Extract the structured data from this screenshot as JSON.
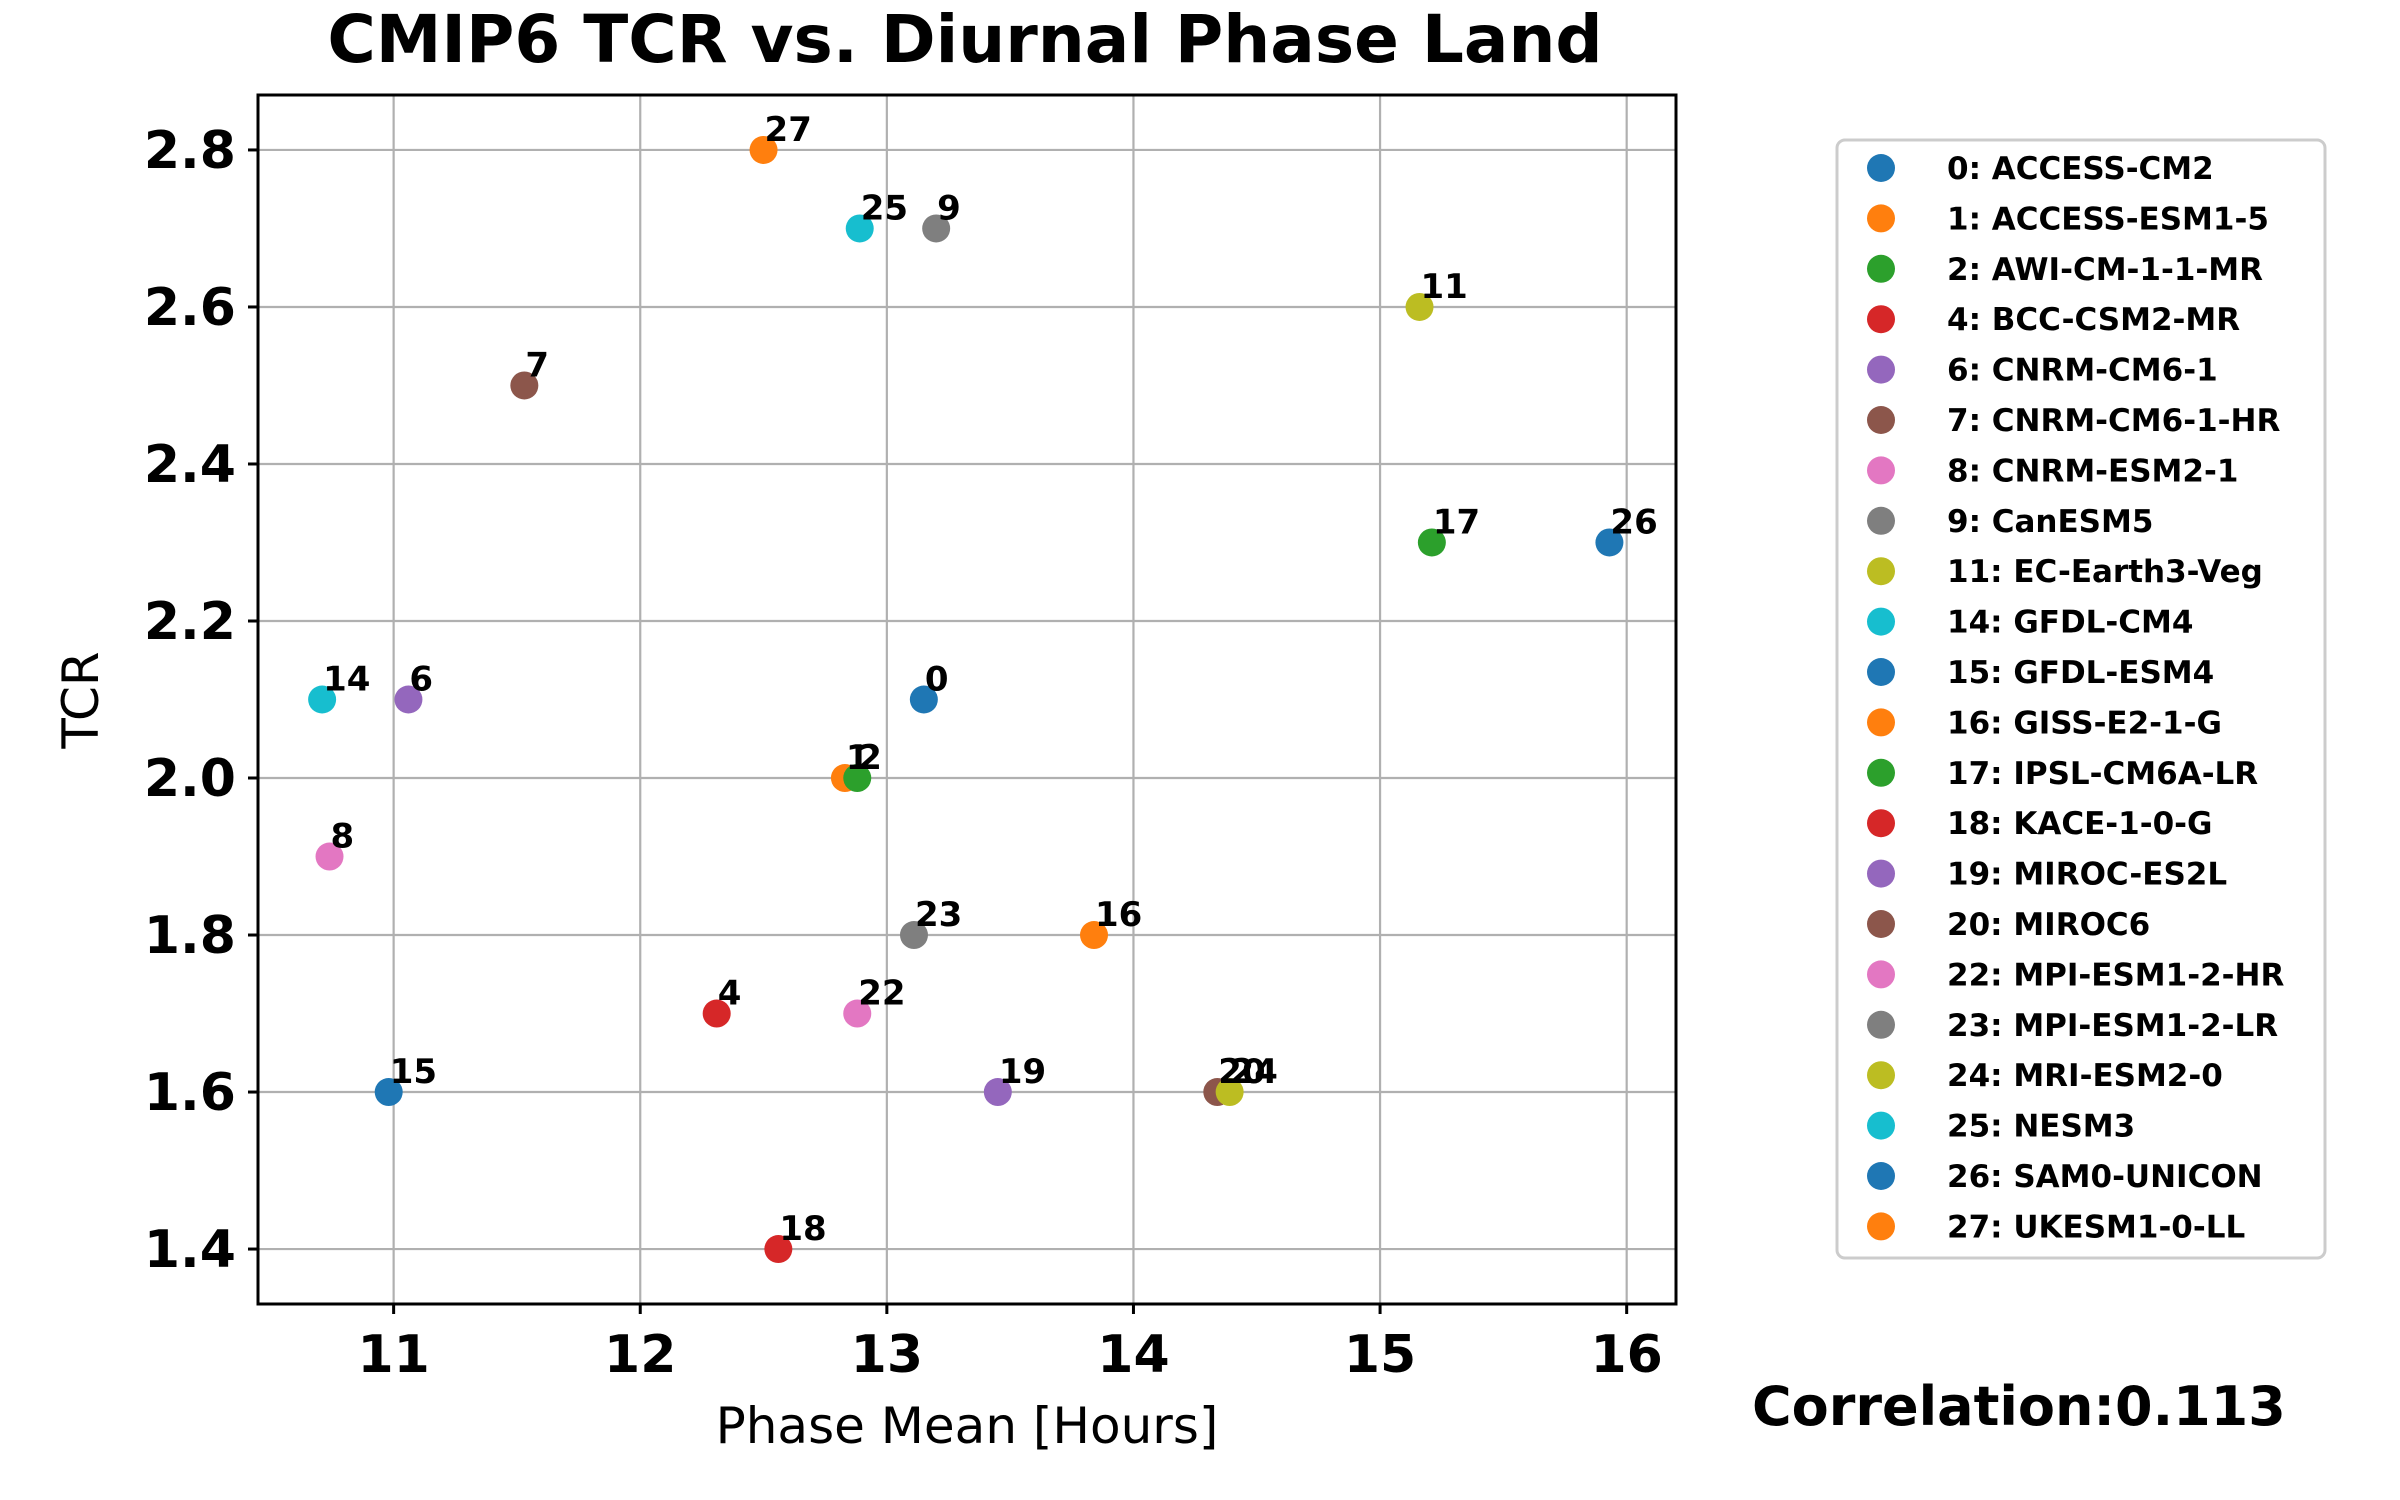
{
  "chart_data": {
    "type": "scatter",
    "title": "CMIP6 TCR vs. Diurnal Phase Land",
    "xlabel": "Phase Mean [Hours]",
    "ylabel": "TCR",
    "xlim": [
      10.45,
      16.2
    ],
    "ylim": [
      1.33,
      2.87
    ],
    "xticks": [
      11,
      12,
      13,
      14,
      15,
      16
    ],
    "yticks": [
      1.4,
      1.6,
      1.8,
      2.0,
      2.2,
      2.4,
      2.6,
      2.8
    ],
    "grid": true,
    "legend_position": "right",
    "annotation": "Correlation:0.113",
    "points": [
      {
        "id": "0",
        "model": "ACCESS-CM2",
        "legend": "0: ACCESS-CM2",
        "x": 13.15,
        "y": 2.1,
        "color": "#1f77b4"
      },
      {
        "id": "1",
        "model": "ACCESS-ESM1-5",
        "legend": "1: ACCESS-ESM1-5",
        "x": 12.83,
        "y": 2.0,
        "color": "#ff7f0e"
      },
      {
        "id": "2",
        "model": "AWI-CM-1-1-MR",
        "legend": "2: AWI-CM-1-1-MR",
        "x": 12.88,
        "y": 2.0,
        "color": "#2ca02c"
      },
      {
        "id": "4",
        "model": "BCC-CSM2-MR",
        "legend": "4: BCC-CSM2-MR",
        "x": 12.31,
        "y": 1.7,
        "color": "#d62728"
      },
      {
        "id": "6",
        "model": "CNRM-CM6-1",
        "legend": "6: CNRM-CM6-1",
        "x": 11.06,
        "y": 2.1,
        "color": "#9467bd"
      },
      {
        "id": "7",
        "model": "CNRM-CM6-1-HR",
        "legend": "7: CNRM-CM6-1-HR",
        "x": 11.53,
        "y": 2.5,
        "color": "#8c564b"
      },
      {
        "id": "8",
        "model": "CNRM-ESM2-1",
        "legend": "8: CNRM-ESM2-1",
        "x": 10.74,
        "y": 1.9,
        "color": "#e377c2"
      },
      {
        "id": "9",
        "model": "CanESM5",
        "legend": "9: CanESM5",
        "x": 13.2,
        "y": 2.7,
        "color": "#7f7f7f"
      },
      {
        "id": "11",
        "model": "EC-Earth3-Veg",
        "legend": "11: EC-Earth3-Veg",
        "x": 15.16,
        "y": 2.6,
        "color": "#bcbd22"
      },
      {
        "id": "14",
        "model": "GFDL-CM4",
        "legend": "14: GFDL-CM4",
        "x": 10.71,
        "y": 2.1,
        "color": "#17becf"
      },
      {
        "id": "15",
        "model": "GFDL-ESM4",
        "legend": "15: GFDL-ESM4",
        "x": 10.98,
        "y": 1.6,
        "color": "#1f77b4"
      },
      {
        "id": "16",
        "model": "GISS-E2-1-G",
        "legend": "16: GISS-E2-1-G",
        "x": 13.84,
        "y": 1.8,
        "color": "#ff7f0e"
      },
      {
        "id": "17",
        "model": "IPSL-CM6A-LR",
        "legend": "17: IPSL-CM6A-LR",
        "x": 15.21,
        "y": 2.3,
        "color": "#2ca02c"
      },
      {
        "id": "18",
        "model": "KACE-1-0-G",
        "legend": "18: KACE-1-0-G",
        "x": 12.56,
        "y": 1.4,
        "color": "#d62728"
      },
      {
        "id": "19",
        "model": "MIROC-ES2L",
        "legend": "19: MIROC-ES2L",
        "x": 13.45,
        "y": 1.6,
        "color": "#9467bd"
      },
      {
        "id": "20",
        "model": "MIROC6",
        "legend": "20: MIROC6",
        "x": 14.34,
        "y": 1.6,
        "color": "#8c564b"
      },
      {
        "id": "22",
        "model": "MPI-ESM1-2-HR",
        "legend": "22: MPI-ESM1-2-HR",
        "x": 12.88,
        "y": 1.7,
        "color": "#e377c2"
      },
      {
        "id": "23",
        "model": "MPI-ESM1-2-LR",
        "legend": "23: MPI-ESM1-2-LR",
        "x": 13.11,
        "y": 1.8,
        "color": "#7f7f7f"
      },
      {
        "id": "24",
        "model": "MRI-ESM2-0",
        "legend": "24: MRI-ESM2-0",
        "x": 14.39,
        "y": 1.6,
        "color": "#bcbd22"
      },
      {
        "id": "25",
        "model": "NESM3",
        "legend": "25: NESM3",
        "x": 12.89,
        "y": 2.7,
        "color": "#17becf"
      },
      {
        "id": "26",
        "model": "SAM0-UNICON",
        "legend": "26: SAM0-UNICON",
        "x": 15.93,
        "y": 2.3,
        "color": "#1f77b4"
      },
      {
        "id": "27",
        "model": "UKESM1-0-LL",
        "legend": "27: UKESM1-0-LL",
        "x": 12.5,
        "y": 2.8,
        "color": "#ff7f0e"
      }
    ]
  }
}
